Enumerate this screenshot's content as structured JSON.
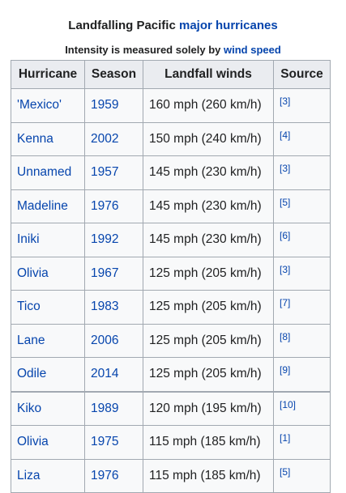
{
  "caption": {
    "prefix": "Landfalling Pacific ",
    "link": "major hurricanes"
  },
  "subcaption": {
    "prefix": "Intensity is measured solely by ",
    "link": "wind speed"
  },
  "table": {
    "headers": [
      "Hurricane",
      "Season",
      "Landfall winds",
      "Source"
    ],
    "rows": [
      {
        "name": "'Mexico'",
        "season": "1959",
        "winds": "160 mph (260 km/h)",
        "source": "[3]"
      },
      {
        "name": "Kenna",
        "season": "2002",
        "winds": "150 mph (240 km/h)",
        "source": "[4]"
      },
      {
        "name": "Unnamed",
        "season": "1957",
        "winds": "145 mph (230 km/h)",
        "source": "[3]"
      },
      {
        "name": "Madeline",
        "season": "1976",
        "winds": "145 mph (230 km/h)",
        "source": "[5]"
      },
      {
        "name": "Iniki",
        "season": "1992",
        "winds": "145 mph (230 km/h)",
        "source": "[6]"
      },
      {
        "name": "Olivia",
        "season": "1967",
        "winds": "125 mph (205 km/h)",
        "source": "[3]"
      },
      {
        "name": "Tico",
        "season": "1983",
        "winds": "125 mph (205 km/h)",
        "source": "[7]"
      },
      {
        "name": "Lane",
        "season": "2006",
        "winds": "125 mph (205 km/h)",
        "source": "[8]"
      },
      {
        "name": "Odile",
        "season": "2014",
        "winds": "125 mph (205 km/h)",
        "source": "[9]"
      },
      {
        "name": "Kiko",
        "season": "1989",
        "winds": "120 mph (195 km/h)",
        "source": "[10]"
      },
      {
        "name": "Olivia",
        "season": "1975",
        "winds": "115 mph (185 km/h)",
        "source": "[1]"
      },
      {
        "name": "Liza",
        "season": "1976",
        "winds": "115 mph (185 km/h)",
        "source": "[5]"
      }
    ]
  }
}
